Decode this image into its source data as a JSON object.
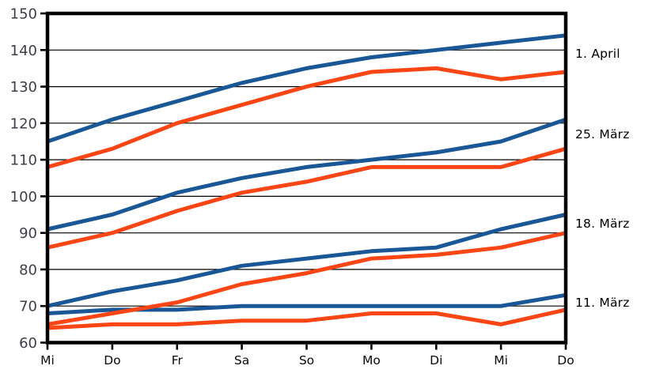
{
  "chart_data": {
    "type": "line",
    "title": "",
    "categories": [
      "Mi",
      "Do",
      "Fr",
      "Sa",
      "So",
      "Mo",
      "Di",
      "Mi",
      "Do"
    ],
    "y_axis": {
      "min": 60,
      "max": 150,
      "tick_step": 10,
      "tick_labels": [
        "150",
        "140",
        "130",
        "120",
        "110",
        "100",
        "90",
        "80",
        "70",
        "60"
      ]
    },
    "x_axis": {
      "tick_labels": [
        "Mi",
        "Do",
        "Fr",
        "Sa",
        "So",
        "Mo",
        "Di",
        "Mi",
        "Do"
      ]
    },
    "grid": "horizontal",
    "legend_position": "right-annotations",
    "groups": [
      {
        "label": "1. April",
        "series": [
          {
            "color_key": "blue",
            "values": [
              115,
              121,
              126,
              131,
              135,
              138,
              140,
              142,
              144
            ]
          },
          {
            "color_key": "orange",
            "values": [
              108,
              113,
              120,
              125,
              130,
              134,
              135,
              132,
              134
            ]
          }
        ]
      },
      {
        "label": "25. März",
        "series": [
          {
            "color_key": "blue",
            "values": [
              91,
              95,
              101,
              105,
              108,
              110,
              112,
              115,
              121
            ]
          },
          {
            "color_key": "orange",
            "values": [
              86,
              90,
              96,
              101,
              104,
              108,
              108,
              108,
              113
            ]
          }
        ]
      },
      {
        "label": "18. März",
        "series": [
          {
            "color_key": "blue",
            "values": [
              70,
              74,
              77,
              81,
              83,
              85,
              86,
              91,
              95
            ]
          },
          {
            "color_key": "orange",
            "values": [
              65,
              68,
              71,
              76,
              79,
              83,
              84,
              86,
              90
            ]
          }
        ]
      },
      {
        "label": "11. März",
        "series": [
          {
            "color_key": "blue",
            "values": [
              68,
              69,
              69,
              70,
              70,
              70,
              70,
              70,
              73
            ]
          },
          {
            "color_key": "orange",
            "values": [
              64,
              65,
              65,
              66,
              66,
              68,
              68,
              65,
              69
            ]
          }
        ]
      }
    ],
    "colors": {
      "blue": "#1a5796",
      "orange": "#fa4515",
      "grid": "#000000",
      "frame": "#000000",
      "y_label_text": "#3e3e48",
      "x_label_text": "#0a0a0a"
    },
    "line_width": 5
  }
}
